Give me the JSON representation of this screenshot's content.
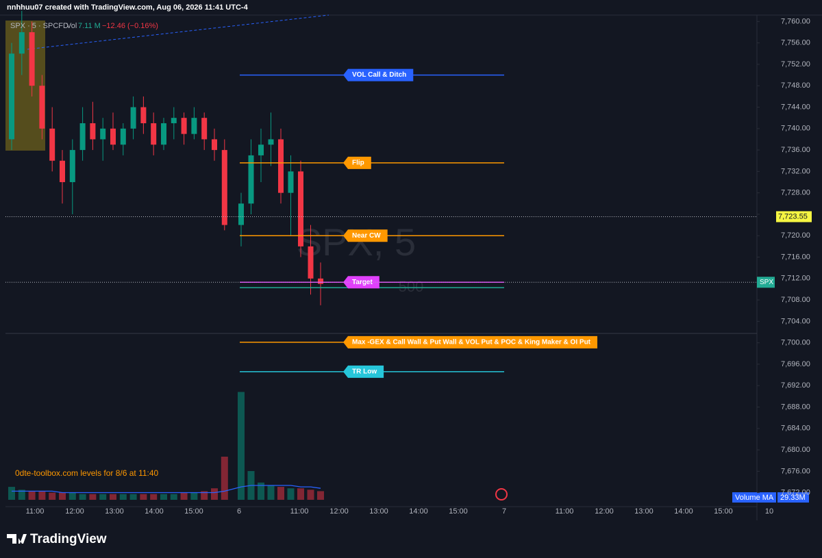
{
  "chart_data": {
    "type": "candlestick",
    "header": "nnhhuu07 created with TradingView.com, Aug 06, 2026 11:41 UTC-4",
    "symbol": "SPX · 5 · SPCFD",
    "volume_label": "Vol",
    "volume_value": "7.11 M",
    "change": "−12.46 (−0.16%)",
    "watermark": "SPX, 5",
    "watermark_sub": "500",
    "note": "0dte-toolbox.com levels for 8/6 at 11:40",
    "volume_ma_label": "Volume MA",
    "volume_ma_value": "29.33M",
    "brand": "TradingView",
    "symbol_tag": "SPX",
    "ylim": [
      7669.4,
      7761.2
    ],
    "yticks": [
      {
        "value": 7760,
        "label": "7,760.00"
      },
      {
        "value": 7756,
        "label": "7,756.00"
      },
      {
        "value": 7752,
        "label": "7,752.00"
      },
      {
        "value": 7748,
        "label": "7,748.00"
      },
      {
        "value": 7744,
        "label": "7,744.00"
      },
      {
        "value": 7740,
        "label": "7,740.00"
      },
      {
        "value": 7736,
        "label": "7,736.00"
      },
      {
        "value": 7732,
        "label": "7,732.00"
      },
      {
        "value": 7728,
        "label": "7,728.00"
      },
      {
        "value": 7724,
        "label": "7,724.00"
      },
      {
        "value": 7720,
        "label": "7,720.00"
      },
      {
        "value": 7716,
        "label": "7,716.00"
      },
      {
        "value": 7712,
        "label": "7,712.00"
      },
      {
        "value": 7708,
        "label": "7,708.00"
      },
      {
        "value": 7704,
        "label": "7,704.00"
      },
      {
        "value": 7700,
        "label": "7,700.00"
      },
      {
        "value": 7696,
        "label": "7,696.00"
      },
      {
        "value": 7692,
        "label": "7,692.00"
      },
      {
        "value": 7688,
        "label": "7,688.00"
      },
      {
        "value": 7684,
        "label": "7,684.00"
      },
      {
        "value": 7680,
        "label": "7,680.00"
      },
      {
        "value": 7676,
        "label": "7,676.00"
      },
      {
        "value": 7672,
        "label": "7,672.00"
      }
    ],
    "last_price": {
      "value": 7723.55,
      "label": "7,723.55"
    },
    "x_labels": [
      "11:00",
      "12:00",
      "13:00",
      "14:00",
      "15:00",
      "6",
      "11:00",
      "12:00",
      "13:00",
      "14:00",
      "15:00",
      "7",
      "11:00",
      "12:00",
      "13:00",
      "14:00",
      "15:00",
      "10"
    ],
    "open": [
      7738,
      7754,
      7758,
      7748,
      7740,
      7734,
      7730,
      7736,
      7741,
      7738,
      7740,
      7737,
      7740,
      7744,
      7741,
      7737,
      7741,
      7742,
      7739,
      7742,
      7738,
      7736,
      7722,
      7726,
      7735,
      7737,
      7738,
      7728,
      7732,
      7718,
      7712
    ],
    "high": [
      7756,
      7762,
      7760,
      7750,
      7744,
      7736,
      7738,
      7744,
      7745,
      7742,
      7743,
      7741,
      7746,
      7746,
      7743,
      7742,
      7744,
      7743,
      7744,
      7743,
      7740,
      7738,
      7728,
      7738,
      7740,
      7743,
      7740,
      7735,
      7734,
      7722,
      7715
    ],
    "low": [
      7736,
      7750,
      7746,
      7738,
      7732,
      7726,
      7724,
      7734,
      7736,
      7734,
      7736,
      7735,
      7738,
      7739,
      7735,
      7736,
      7738,
      7737,
      7738,
      7736,
      7734,
      7721,
      7718,
      7724,
      7730,
      7733,
      7726,
      7720,
      7716,
      7709,
      7707
    ],
    "close": [
      7754,
      7758,
      7748,
      7740,
      7734,
      7730,
      7736,
      7741,
      7738,
      7740,
      7737,
      7740,
      7744,
      7741,
      7737,
      7741,
      7742,
      7739,
      7742,
      7738,
      7736,
      7722,
      7726,
      7735,
      7737,
      7738,
      7728,
      7732,
      7718,
      7712,
      7711
    ],
    "volume": [
      9,
      7,
      6,
      6,
      5,
      5,
      5,
      4,
      4,
      4,
      4,
      4,
      4,
      4,
      4,
      4,
      4,
      5,
      5,
      6,
      8,
      30,
      75,
      20,
      12,
      10,
      9,
      8,
      8,
      7,
      6
    ],
    "volume_ma": [
      6,
      6,
      6,
      6,
      6,
      5,
      5,
      5,
      5,
      5,
      5,
      5,
      5,
      5,
      5,
      5,
      5,
      5,
      5,
      5,
      5,
      6,
      9,
      10,
      10,
      10,
      10,
      10,
      9,
      9,
      8
    ],
    "up_color": "#089981",
    "down_color": "#f23645",
    "levels": [
      {
        "name": "VOL Call & Ditch",
        "value": 7750,
        "color": "#2962ff"
      },
      {
        "name": "Flip",
        "value": 7733.6,
        "color": "#ff9800"
      },
      {
        "name": "Near CW",
        "value": 7720,
        "color": "#ff9800"
      },
      {
        "value": 7710.3,
        "color": "#22ab94"
      },
      {
        "name": "Target",
        "value": 7711.3,
        "color": "#e040fb"
      },
      {
        "name": "Max -GEX & Call Wall & Put Wall & VOL Put & POC & King Maker & OI Put",
        "value": 7700.1,
        "color": "#ff9800"
      },
      {
        "name": "TR Low",
        "value": 7694.6,
        "color": "#26c6da"
      }
    ]
  }
}
